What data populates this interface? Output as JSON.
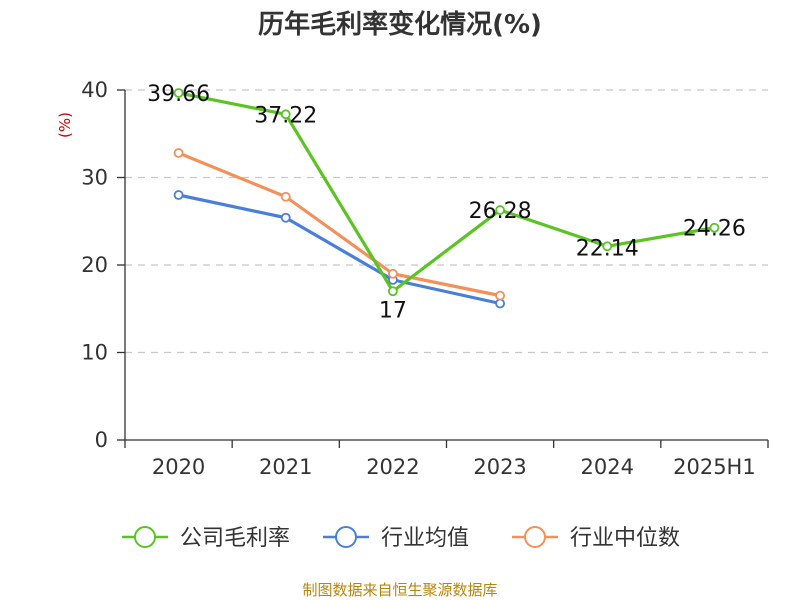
{
  "chart_data": {
    "type": "line",
    "title": "历年毛利率变化情况(%)",
    "ylabel": "(%)",
    "categories": [
      "2020",
      "2021",
      "2022",
      "2023",
      "2024",
      "2025H1"
    ],
    "ylim": [
      0,
      40
    ],
    "yticks": [
      0,
      10,
      20,
      30,
      40
    ],
    "grid": true,
    "legend_position": "bottom",
    "series": [
      {
        "name": "公司毛利率",
        "color": "#5bc424",
        "values": [
          39.66,
          37.22,
          17,
          26.28,
          22.14,
          24.26
        ],
        "labels": [
          "39.66",
          "37.22",
          "17",
          "26.28",
          "22.14",
          "24.26"
        ]
      },
      {
        "name": "行业均值",
        "color": "#4a7fd9",
        "values": [
          28.0,
          25.4,
          18.3,
          15.6,
          null,
          null
        ]
      },
      {
        "name": "行业中位数",
        "color": "#f4905a",
        "values": [
          32.8,
          27.8,
          19.0,
          16.5,
          null,
          null
        ]
      }
    ]
  },
  "source": "制图数据来自恒生聚源数据库"
}
